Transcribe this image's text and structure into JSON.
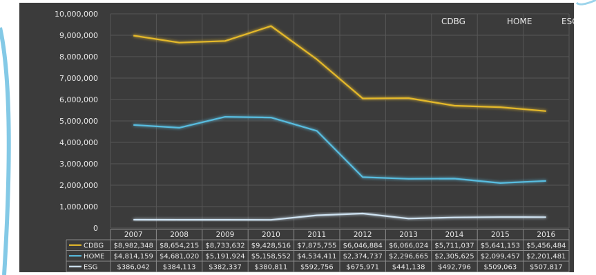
{
  "chart_data": {
    "type": "line",
    "title": "",
    "xlabel": "",
    "ylabel": "",
    "categories": [
      "2007",
      "2008",
      "2009",
      "2010",
      "2011",
      "2012",
      "2013",
      "2014",
      "2015",
      "2016"
    ],
    "ylim": [
      0,
      10000000
    ],
    "yticks": [
      0,
      1000000,
      2000000,
      3000000,
      4000000,
      5000000,
      6000000,
      7000000,
      8000000,
      9000000,
      10000000
    ],
    "ytick_labels": [
      "0",
      "1,000,000",
      "2,000,000",
      "3,000,000",
      "4,000,000",
      "5,000,000",
      "6,000,000",
      "7,000,000",
      "8,000,000",
      "9,000,000",
      "10,000,000"
    ],
    "grid": true,
    "legend_position": "top-right",
    "series": [
      {
        "name": "CDBG",
        "color": "#e5b92b",
        "values": [
          8982348,
          8654215,
          8733632,
          9428516,
          7875755,
          6046884,
          6066024,
          5711037,
          5641153,
          5456484
        ],
        "table_labels": [
          "$8,982,348",
          "$8,654,215",
          "$8,733,632",
          "$9,428,516",
          "$7,875,755",
          "$6,046,884",
          "$6,066,024",
          "$5,711,037",
          "$5,641,153",
          "$5,456,484"
        ]
      },
      {
        "name": "HOME",
        "color": "#58bde0",
        "values": [
          4814159,
          4681020,
          5191924,
          5158552,
          4534411,
          2374737,
          2296665,
          2305625,
          2099457,
          2201481
        ],
        "table_labels": [
          "$4,814,159",
          "$4,681,020",
          "$5,191,924",
          "$5,158,552",
          "$4,534,411",
          "$2,374,737",
          "$2,296,665",
          "$2,305,625",
          "$2,099,457",
          "$2,201,481"
        ]
      },
      {
        "name": "ESG",
        "color": "#cfe3f2",
        "values": [
          386042,
          384113,
          382337,
          380811,
          592756,
          675971,
          441138,
          492796,
          509063,
          507817
        ],
        "table_labels": [
          "$386,042",
          "$384,113",
          "$382,337",
          "$380,811",
          "$592,756",
          "$675,971",
          "$441,138",
          "$492,796",
          "$509,063",
          "$507,817"
        ]
      }
    ]
  },
  "colors": {
    "background": "#3b3b3b",
    "grid": "#575757",
    "text": "#e8e8e8",
    "table_border": "#8a8a8a",
    "frame_accent": "#5ab7de"
  }
}
